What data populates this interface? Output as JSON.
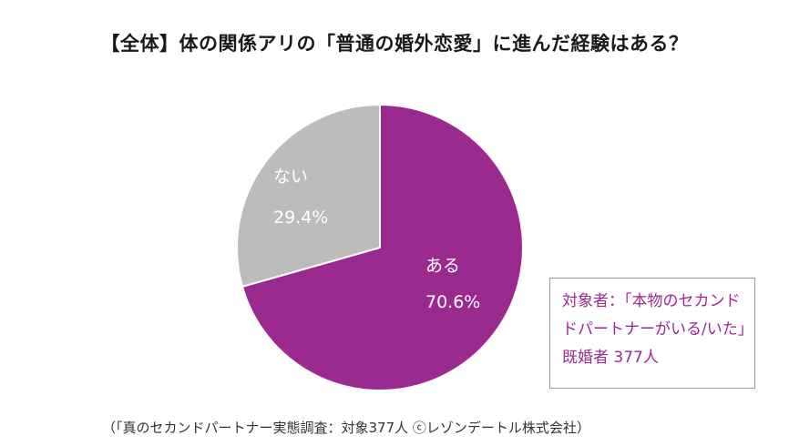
{
  "title": "【全体】体の関係アリの「普通の婚外恋愛」に進んだ経験はある？",
  "chart_data": {
    "type": "pie",
    "slices": [
      {
        "label": "ある",
        "value": 70.6,
        "value_text": "70.6%",
        "color": "#9b2a8f"
      },
      {
        "label": "ない",
        "value": 29.4,
        "value_text": "29.4%",
        "color": "#bcbcbc"
      }
    ]
  },
  "note_box": {
    "line1": "対象者：「本物のセカンド",
    "line2": "ドパートナーがいる/いた」",
    "line3": "既婚者 377人"
  },
  "source": "（「真のセカンドパートナー実態調査：対象377人 ⓒレゾンデートル株式会社）"
}
